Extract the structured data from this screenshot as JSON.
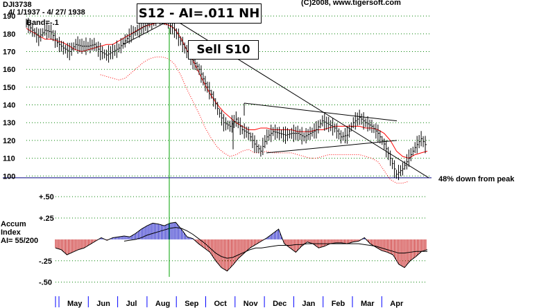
{
  "header": {
    "ticker": "DJI3738",
    "date_range": "4/ 1/1937 -  4/ 27/ 1938",
    "band": "Band=-.1",
    "copyright": "(C)2008, www.tigersoft.com"
  },
  "annotations": {
    "s12": "S12 - AI=.011 NH",
    "s10": "Sell S10",
    "decline": "48% down from peak"
  },
  "accum_label": {
    "line1": "Accum",
    "line2": "Index",
    "line3": "AI= 55/200"
  },
  "colors": {
    "price": "#000000",
    "band_upper": "#ff0000",
    "band_lower": "#ff0000",
    "grid": "#008000",
    "signal_line": "#00a000",
    "accum_positive": "#0000c0",
    "accum_negative": "#c00000",
    "month_tick": "#0000ff"
  },
  "chart_data": {
    "type": "line",
    "title": "DJI3738",
    "price": {
      "ylim": [
        97,
        192
      ],
      "yticks": [
        "190",
        "180",
        "170",
        "160",
        "150",
        "140",
        "130",
        "120",
        "110",
        "100"
      ],
      "series": [
        {
          "name": "DJI",
          "values": [
            186,
            182,
            178,
            182,
            181,
            175,
            172,
            170,
            174,
            173,
            173,
            174,
            170,
            168,
            170,
            172,
            176,
            180,
            182,
            184,
            186,
            188,
            190,
            186,
            182,
            176,
            170,
            165,
            160,
            152,
            146,
            138,
            130,
            128,
            132,
            126,
            124,
            118,
            114,
            122,
            125,
            124,
            123,
            124,
            124,
            122,
            124,
            126,
            131,
            129,
            127,
            122,
            123,
            130,
            133,
            130,
            128,
            124,
            118,
            110,
            101,
            104,
            110,
            116,
            121,
            116
          ]
        },
        {
          "name": "Upper band",
          "values": [
            183,
            181,
            179,
            177,
            177,
            176,
            175,
            173,
            171,
            170,
            171,
            172,
            173,
            174,
            174,
            176,
            178,
            180,
            182,
            184,
            185,
            186,
            186,
            185,
            183,
            178,
            171,
            165,
            158,
            151,
            145,
            140,
            136,
            133,
            130,
            128,
            126,
            126,
            127,
            127,
            126,
            126,
            126,
            126,
            125,
            125,
            125,
            126,
            126,
            127,
            128,
            128,
            128,
            128,
            128,
            127,
            127,
            126,
            124,
            120,
            114,
            111,
            110,
            112,
            113,
            114
          ]
        },
        {
          "name": "Lower band",
          "values": [
            null,
            null,
            null,
            null,
            null,
            null,
            null,
            null,
            null,
            null,
            null,
            null,
            157,
            156,
            155,
            154,
            155,
            158,
            161,
            164,
            166,
            167,
            167,
            166,
            163,
            157,
            149,
            142,
            135,
            127,
            121,
            116,
            113,
            111,
            112,
            114,
            115,
            113,
            113,
            114,
            113,
            113,
            113,
            113,
            112,
            111,
            110,
            110,
            111,
            112,
            112,
            112,
            112,
            112,
            112,
            111,
            110,
            108,
            103,
            98,
            96,
            96,
            97,
            null,
            null,
            null
          ]
        }
      ]
    },
    "lines": [
      {
        "name": "uptrend",
        "from": [
          "Jun",
          174
        ],
        "to": [
          "Aug",
          192
        ]
      },
      {
        "name": "downtrend",
        "from": [
          "Aug",
          190
        ],
        "to": [
          "Apr",
          99
        ]
      },
      {
        "name": "wedge-upper",
        "from": [
          "Oct",
          141
        ],
        "to": [
          "Mar",
          131
        ]
      },
      {
        "name": "wedge-lower",
        "from": [
          "Oct",
          113
        ],
        "to": [
          "Mar",
          120
        ]
      }
    ],
    "accum": {
      "ylim": [
        -0.6,
        0.55
      ],
      "yticks": [
        "+.50",
        "+.25",
        "-.25",
        "-.50"
      ],
      "values": [
        -0.1,
        -0.12,
        -0.18,
        -0.15,
        -0.12,
        -0.1,
        -0.06,
        -0.02,
        0.02,
        -0.01,
        0.02,
        0.03,
        0.04,
        0.03,
        0.07,
        0.12,
        0.16,
        0.19,
        0.18,
        0.16,
        0.19,
        0.2,
        0.12,
        0.03,
        0.01,
        -0.05,
        -0.1,
        -0.15,
        -0.25,
        -0.33,
        -0.37,
        -0.3,
        -0.22,
        -0.16,
        -0.1,
        -0.06,
        -0.02,
        0.02,
        0.07,
        0.12,
        -0.05,
        -0.1,
        -0.15,
        -0.08,
        -0.03,
        -0.05,
        -0.1,
        -0.08,
        -0.05,
        -0.04,
        -0.04,
        -0.05,
        -0.03,
        -0.02,
        0.02,
        -0.05,
        -0.09,
        -0.13,
        -0.15,
        -0.18,
        -0.29,
        -0.33,
        -0.25,
        -0.2,
        -0.14,
        -0.12
      ],
      "ma": [
        null,
        null,
        null,
        null,
        null,
        null,
        null,
        null,
        null,
        null,
        null,
        null,
        -0.02,
        -0.01,
        0.0,
        0.02,
        0.05,
        0.07,
        0.09,
        0.11,
        0.13,
        0.14,
        0.13,
        0.1,
        0.06,
        0.01,
        -0.04,
        -0.1,
        -0.16,
        -0.2,
        -0.22,
        -0.21,
        -0.18,
        -0.15,
        -0.12,
        -0.1,
        -0.1,
        -0.09,
        -0.08,
        -0.07,
        -0.07,
        -0.07,
        -0.06,
        -0.06,
        -0.05,
        -0.05,
        -0.05,
        -0.05,
        -0.05,
        -0.05,
        -0.05,
        -0.05,
        -0.05,
        -0.05,
        -0.06,
        -0.07,
        -0.08,
        -0.1,
        -0.12,
        -0.14,
        -0.16,
        -0.16,
        -0.15,
        -0.14,
        -0.14,
        -0.14
      ]
    },
    "months": [
      "May",
      "Jun",
      "Jul",
      "Aug",
      "Sep",
      "Oct",
      "Nov",
      "Dec",
      "Jan",
      "Feb",
      "Mar",
      "Apr"
    ],
    "signal_month": "Aug"
  }
}
